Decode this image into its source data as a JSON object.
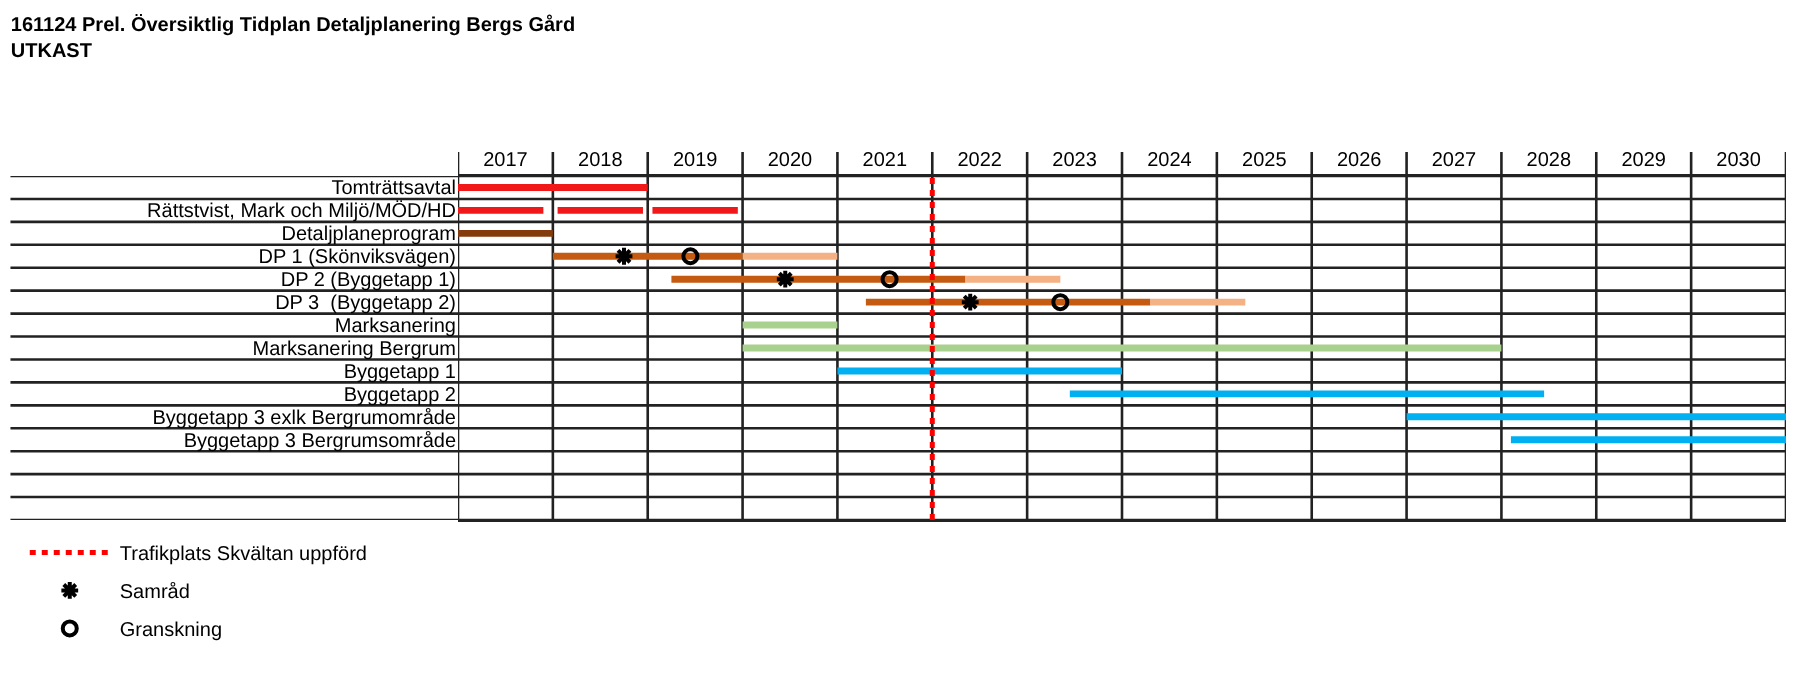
{
  "chart_data": {
    "type": "bar",
    "orientation": "horizontal",
    "title": "161124 Prel. Översiktlig Tidplan Detaljplanering Bergs Gård",
    "subtitle": "UTKAST",
    "categories": [
      "Tomträttsavtal",
      "Rättstvist, Mark och Miljö/MÖD/HD",
      "Detaljplaneprogram",
      "DP 1 (Skönviksvägen)",
      "DP 2 (Byggetapp 1)",
      "DP 3  (Byggetapp 2)",
      "Marksanering",
      "Marksanering Bergrum",
      "Byggetapp 1",
      "Byggetapp 2",
      "Byggetapp 3 exlk Bergrumområde",
      "Byggetapp 3 Bergrumsområde",
      null,
      null,
      null
    ],
    "series": [
      {
        "base": [
          2017,
          2017,
          2017,
          2018,
          2019.25,
          2021.3,
          2020,
          2020,
          2021,
          2023.45,
          2027,
          2028.1,
          null,
          null,
          null
        ],
        "values": [
          2.0,
          0.9,
          1.0,
          2.0,
          3.1,
          3.0,
          1.0,
          8.0,
          3.0,
          5.0,
          4.0,
          2.9,
          null,
          null,
          null
        ],
        "colors": [
          "#f01818",
          "#f01818",
          "#843c0c",
          "#c55a11",
          "#c55a11",
          "#c55a11",
          "#a9d18e",
          "#a9d18e",
          "#00b0f0",
          "#00b0f0",
          "#00b0f0",
          "#00b0f0",
          null,
          null,
          null
        ]
      },
      {
        "base": [
          null,
          2018.05,
          null,
          2020,
          2022.35,
          2024.3,
          null,
          null,
          null,
          null,
          null,
          null,
          null,
          null,
          null
        ],
        "values": [
          null,
          0.9,
          null,
          1.0,
          1.0,
          1.0,
          null,
          null,
          null,
          null,
          null,
          null,
          null,
          null,
          null
        ],
        "colors": [
          null,
          "#f01818",
          null,
          "#f4b183",
          "#f4b183",
          "#f4b183",
          null,
          null,
          null,
          null,
          null,
          null,
          null,
          null,
          null
        ]
      },
      {
        "base": [
          null,
          2019.05,
          null,
          null,
          null,
          null,
          null,
          null,
          null,
          null,
          null,
          null,
          null,
          null,
          null
        ],
        "values": [
          null,
          0.9,
          null,
          null,
          null,
          null,
          null,
          null,
          null,
          null,
          null,
          null,
          null,
          null,
          null
        ],
        "colors": [
          null,
          "#f01818",
          null,
          null,
          null,
          null,
          null,
          null,
          null,
          null,
          null,
          null,
          null,
          null,
          null
        ]
      },
      {
        "type": "scatter",
        "name": "Samråd",
        "marker": "cross",
        "color": "#000000",
        "values": [
          null,
          null,
          null,
          2018.75,
          2020.45,
          2022.4,
          null,
          null,
          null,
          null,
          null,
          null,
          null,
          null,
          null
        ]
      },
      {
        "type": "scatter",
        "name": "Granskning",
        "marker": "circle",
        "color": "#000000",
        "values": [
          null,
          null,
          null,
          2019.45,
          2021.55,
          2023.35,
          null,
          null,
          null,
          null,
          null,
          null,
          null,
          null,
          null
        ]
      }
    ],
    "xlim": [
      2017,
      2031
    ],
    "xticks": [
      {
        "value": 2017,
        "label": null
      },
      {
        "value": 2017.5,
        "label": "2017"
      },
      {
        "value": 2018,
        "label": null
      },
      {
        "value": 2018.5,
        "label": "2018"
      },
      {
        "value": 2019,
        "label": null
      },
      {
        "value": 2019.5,
        "label": "2019"
      },
      {
        "value": 2020,
        "label": null
      },
      {
        "value": 2020.5,
        "label": "2020"
      },
      {
        "value": 2021,
        "label": null
      },
      {
        "value": 2021.5,
        "label": "2021"
      },
      {
        "value": 2022,
        "label": null
      },
      {
        "value": 2022.5,
        "label": "2022"
      },
      {
        "value": 2023,
        "label": null
      },
      {
        "value": 2023.5,
        "label": "2023"
      },
      {
        "value": 2024,
        "label": null
      },
      {
        "value": 2024.5,
        "label": "2024"
      },
      {
        "value": 2025,
        "label": null
      },
      {
        "value": 2025.5,
        "label": "2025"
      },
      {
        "value": 2026,
        "label": null
      },
      {
        "value": 2026.5,
        "label": "2026"
      },
      {
        "value": 2027,
        "label": null
      },
      {
        "value": 2027.5,
        "label": "2027"
      },
      {
        "value": 2028,
        "label": null
      },
      {
        "value": 2028.5,
        "label": "2028"
      },
      {
        "value": 2029,
        "label": null
      },
      {
        "value": 2029.5,
        "label": "2029"
      },
      {
        "value": 2030,
        "label": null
      },
      {
        "value": 2030.5,
        "label": "2030"
      },
      {
        "value": 2031,
        "label": null
      }
    ],
    "ref_lines": [
      {
        "axis": "x",
        "value": 2022,
        "label": "Trafikplats Skvältan uppförd",
        "color": "#ff0000",
        "line_style": "dotted"
      }
    ],
    "grid": true,
    "legend": "bottom left"
  }
}
